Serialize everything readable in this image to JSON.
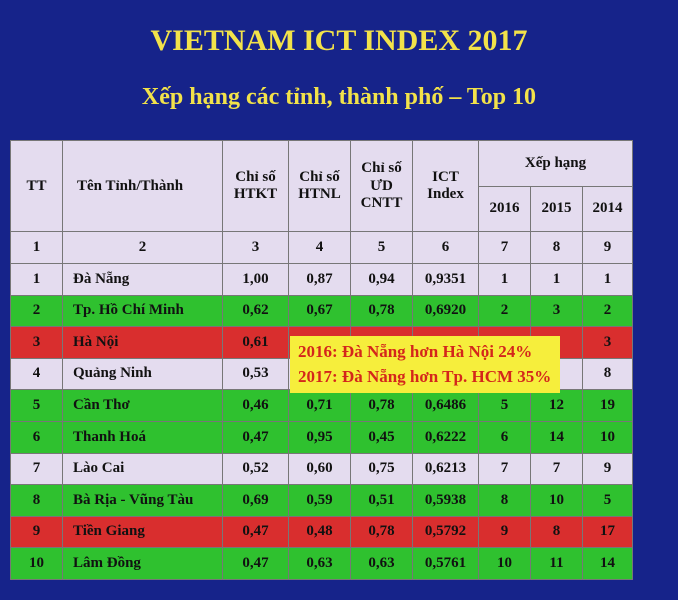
{
  "title": "VIETNAM ICT INDEX 2017",
  "subtitle": "Xếp hạng các tỉnh, thành phố – Top 10",
  "table": {
    "header": [
      "TT",
      "Tên Tỉnh/Thành",
      "Chỉ số\nHTKT",
      "Chỉ số\nHTNL",
      "Chỉ số\nƯD\nCNTT",
      "ICT\nIndex",
      "Xếp hạng"
    ],
    "years": [
      "2016",
      "2015",
      "2014"
    ],
    "index_row": [
      "1",
      "2",
      "3",
      "4",
      "5",
      "6",
      "7",
      "8",
      "9"
    ],
    "rows": [
      {
        "color": "#e4dcef",
        "cells": [
          "1",
          "Đà Nẵng",
          "1,00",
          "0,87",
          "0,94",
          "0,9351",
          "1",
          "1",
          "1"
        ]
      },
      {
        "color": "#2fc12f",
        "cells": [
          "2",
          "Tp. Hồ Chí Minh",
          "0,62",
          "0,67",
          "0,78",
          "0,6920",
          "2",
          "3",
          "2"
        ]
      },
      {
        "color": "#d92e2e",
        "cells": [
          "3",
          "Hà Nội",
          "0,61",
          null,
          null,
          null,
          null,
          null,
          "3"
        ]
      },
      {
        "color": "#e4dcef",
        "cells": [
          "4",
          "Quảng Ninh",
          "0,53",
          null,
          null,
          null,
          null,
          null,
          "8"
        ]
      },
      {
        "color": "#2fc12f",
        "cells": [
          "5",
          "Cần Thơ",
          "0,46",
          "0,71",
          "0,78",
          "0,6486",
          "5",
          "12",
          "19"
        ]
      },
      {
        "color": "#2fc12f",
        "cells": [
          "6",
          "Thanh Hoá",
          "0,47",
          "0,95",
          "0,45",
          "0,6222",
          "6",
          "14",
          "10"
        ]
      },
      {
        "color": "#e4dcef",
        "cells": [
          "7",
          "Lào Cai",
          "0,52",
          "0,60",
          "0,75",
          "0,6213",
          "7",
          "7",
          "9"
        ]
      },
      {
        "color": "#2fc12f",
        "cells": [
          "8",
          "Bà Rịa - Vũng Tàu",
          "0,69",
          "0,59",
          "0,51",
          "0,5938",
          "8",
          "10",
          "5"
        ]
      },
      {
        "color": "#d92e2e",
        "cells": [
          "9",
          "Tiền Giang",
          "0,47",
          "0,48",
          "0,78",
          "0,5792",
          "9",
          "8",
          "17"
        ]
      },
      {
        "color": "#2fc12f",
        "cells": [
          "10",
          "Lâm Đồng",
          "0,47",
          "0,63",
          "0,63",
          "0,5761",
          "10",
          "11",
          "14"
        ]
      }
    ]
  },
  "callout": [
    "2016: Đà Nẵng hơn Hà Nội 24%",
    "2017: Đà Nẵng hơn Tp. HCM 35%"
  ]
}
